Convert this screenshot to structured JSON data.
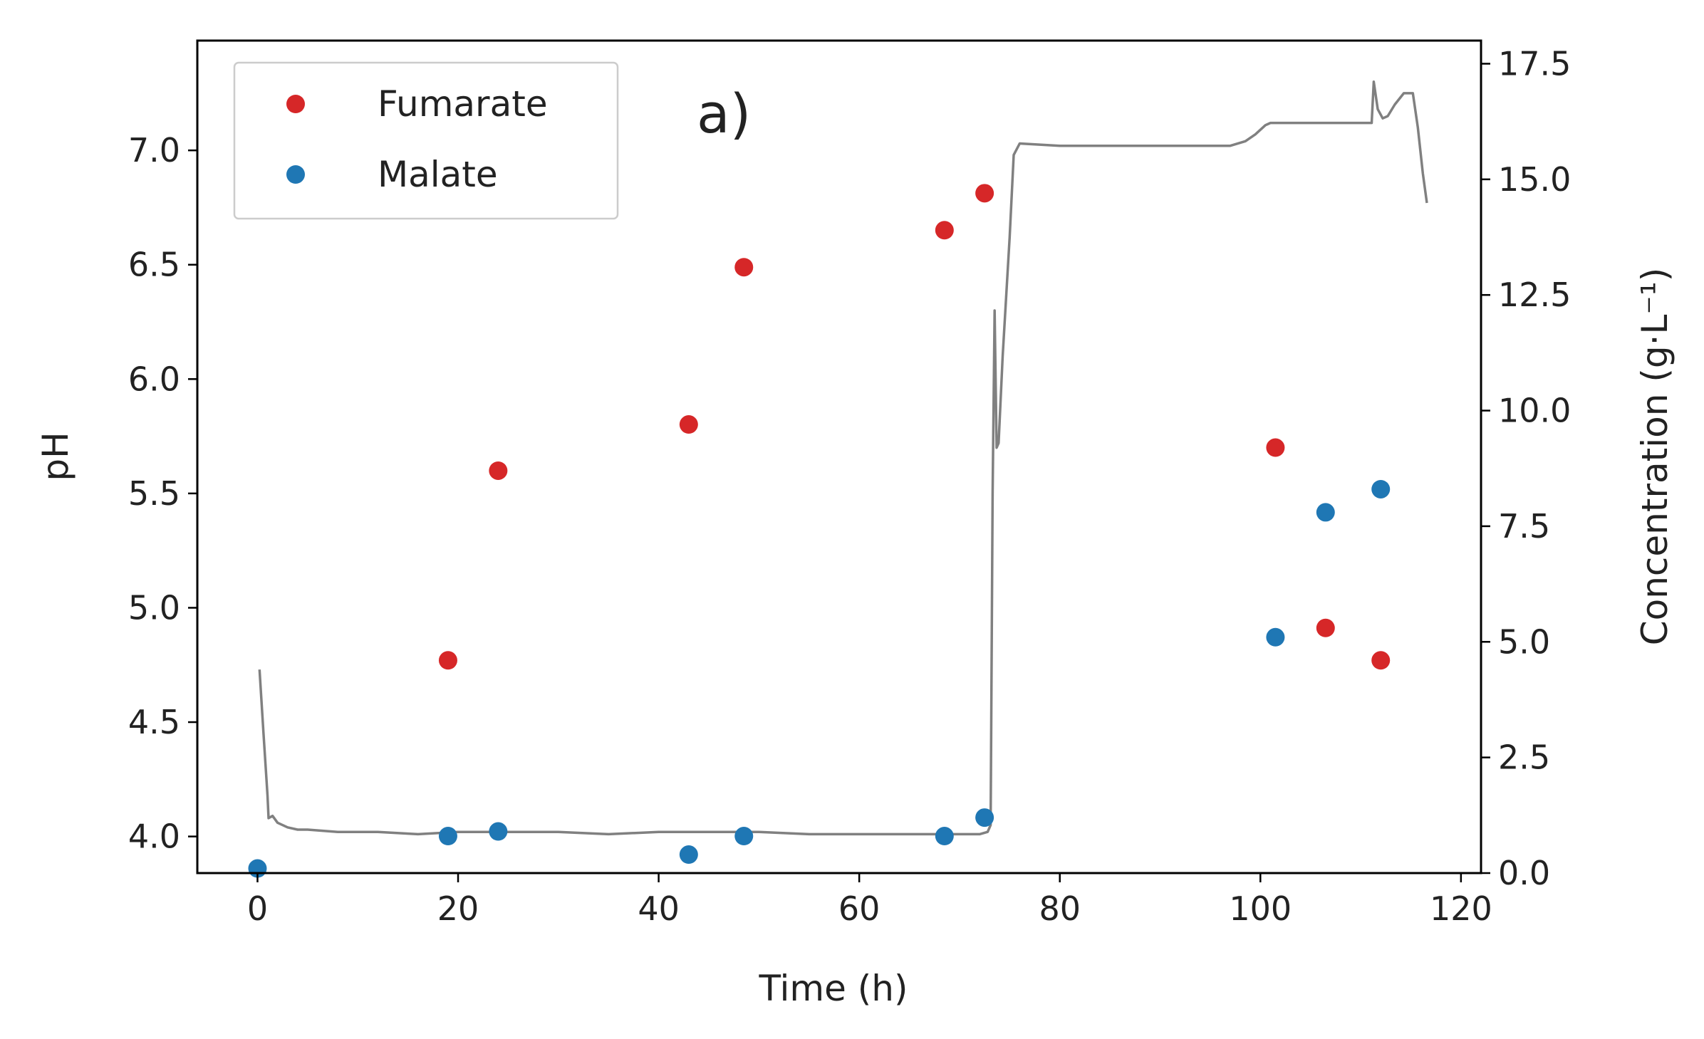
{
  "chart_data": {
    "type": "scatter",
    "panel_label": "a)",
    "xlabel": "Time (h)",
    "ylabel_left": "pH",
    "ylabel_right": "Concentration (g·L⁻¹)",
    "xlim": [
      -6,
      122
    ],
    "ylim_left": [
      3.84,
      7.48
    ],
    "ylim_right": [
      0,
      18
    ],
    "x_ticks": [
      0,
      20,
      40,
      60,
      80,
      100,
      120
    ],
    "x_tick_labels": [
      "0",
      "20",
      "40",
      "60",
      "80",
      "100",
      "120"
    ],
    "y_left_ticks": [
      4.0,
      4.5,
      5.0,
      5.5,
      6.0,
      6.5,
      7.0
    ],
    "y_left_tick_labels": [
      "4.0",
      "4.5",
      "5.0",
      "5.5",
      "6.0",
      "6.5",
      "7.0"
    ],
    "y_right_ticks": [
      0,
      2.5,
      5,
      7.5,
      10,
      12.5,
      15,
      17.5
    ],
    "y_right_tick_labels": [
      "0.0",
      "2.5",
      "5.0",
      "7.5",
      "10.0",
      "12.5",
      "15.0",
      "17.5"
    ],
    "legend": {
      "position": "top-left",
      "entries": [
        "Fumarate",
        "Malate"
      ]
    },
    "series": [
      {
        "name": "Fumarate",
        "kind": "scatter",
        "axis": "right",
        "color": "#d62728",
        "x": [
          19,
          24,
          43,
          48.5,
          68.5,
          72.5,
          101.5,
          106.5,
          112
        ],
        "y": [
          4.6,
          8.7,
          9.7,
          13.1,
          13.9,
          14.7,
          9.2,
          5.3,
          4.6
        ]
      },
      {
        "name": "Malate",
        "kind": "scatter",
        "axis": "right",
        "color": "#1f77b4",
        "x": [
          0,
          19,
          24,
          43,
          48.5,
          68.5,
          72.5,
          101.5,
          106.5,
          112
        ],
        "y": [
          0.1,
          0.8,
          0.9,
          0.4,
          0.8,
          0.8,
          1.2,
          5.1,
          7.8,
          8.3
        ]
      },
      {
        "name": "pH",
        "kind": "line",
        "axis": "left",
        "color": "#808080",
        "x": [
          0.2,
          0.6,
          1.0,
          1.1,
          1.5,
          2,
          3,
          4,
          5,
          8,
          12,
          16,
          20,
          25,
          30,
          35,
          40,
          45,
          50,
          55,
          60,
          65,
          70,
          72,
          72.8,
          73.1,
          73.3,
          73.5,
          73.7,
          73.9,
          74.3,
          75.0,
          75.4,
          76.0,
          80,
          90,
          97,
          98.5,
          99.5,
          100.5,
          101.0,
          105,
          110,
          111.1,
          111.3,
          111.7,
          112.2,
          112.7,
          113.4,
          114.3,
          115.2,
          115.7,
          116.2,
          116.6
        ],
        "y": [
          4.73,
          4.45,
          4.18,
          4.08,
          4.09,
          4.06,
          4.04,
          4.03,
          4.03,
          4.02,
          4.02,
          4.01,
          4.02,
          4.02,
          4.02,
          4.01,
          4.02,
          4.02,
          4.02,
          4.01,
          4.01,
          4.01,
          4.01,
          4.01,
          4.02,
          4.05,
          5.5,
          6.3,
          5.7,
          5.72,
          6.1,
          6.62,
          6.98,
          7.03,
          7.02,
          7.02,
          7.02,
          7.04,
          7.07,
          7.11,
          7.12,
          7.12,
          7.12,
          7.12,
          7.3,
          7.18,
          7.14,
          7.15,
          7.2,
          7.25,
          7.25,
          7.1,
          6.9,
          6.77
        ]
      }
    ]
  }
}
